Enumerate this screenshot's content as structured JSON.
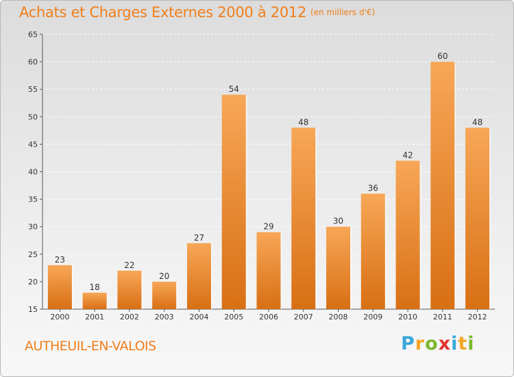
{
  "header": {
    "title": "Achats et Charges Externes 2000 à 2012",
    "unit": "(en milliers d'€)"
  },
  "footer": {
    "place": "AUTHEUIL-EN-VALOIS",
    "brand": "Proxiti",
    "brand_letters": [
      "P",
      "r",
      "o",
      "x",
      "i",
      "t",
      "i"
    ],
    "brand_colors": [
      "#3aa7d9",
      "#f5a623",
      "#7cb82f",
      "#e3342f",
      "#3aa7d9",
      "#f5a623",
      "#7cb82f"
    ]
  },
  "colors": {
    "bar_light": "#f7a757",
    "bar_dark": "#d86f14",
    "title": "#f07e1a"
  },
  "chart_data": {
    "type": "bar",
    "title": "Achats et Charges Externes 2000 à 2012",
    "subtitle": "(en milliers d'€)",
    "categories": [
      "2000",
      "2001",
      "2002",
      "2003",
      "2004",
      "2005",
      "2006",
      "2007",
      "2008",
      "2009",
      "2010",
      "2011",
      "2012"
    ],
    "values": [
      23,
      18,
      22,
      20,
      27,
      54,
      29,
      48,
      30,
      36,
      42,
      60,
      48
    ],
    "ylim": [
      15,
      65
    ],
    "yticks": [
      15,
      20,
      25,
      30,
      35,
      40,
      45,
      50,
      55,
      60,
      65
    ],
    "grid": true,
    "xlabel": "",
    "ylabel": ""
  }
}
